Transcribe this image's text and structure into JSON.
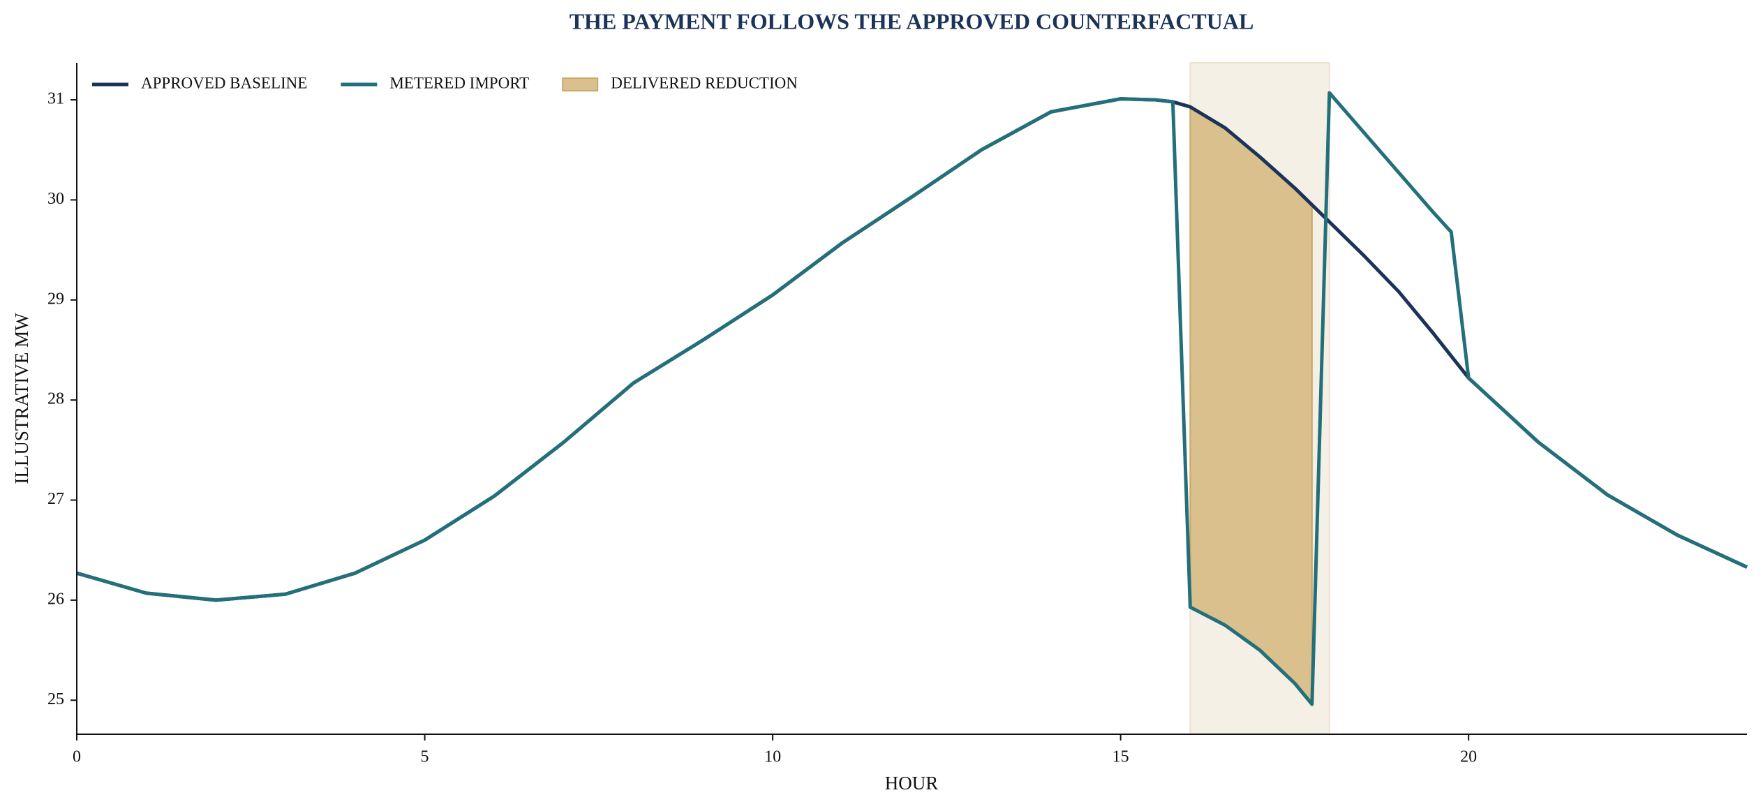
{
  "chart_data": {
    "type": "line",
    "title": "THE PAYMENT FOLLOWS THE APPROVED COUNTERFACTUAL",
    "x_label": "HOUR",
    "y_label": "ILLUSTRATIVE MW",
    "x": [
      0,
      1,
      2,
      3,
      4,
      5,
      6,
      7,
      8,
      9,
      10,
      11,
      12,
      13,
      14,
      15,
      15.5,
      15.75,
      16,
      16.5,
      17,
      17.5,
      17.75,
      18,
      18.5,
      19,
      19.5,
      19.75,
      20,
      21,
      22,
      23,
      24
    ],
    "series": [
      {
        "name": "APPROVED BASELINE",
        "color": "#1b3358",
        "values": [
          26.27,
          26.07,
          26.0,
          26.06,
          26.27,
          26.6,
          27.04,
          27.58,
          28.17,
          28.6,
          29.05,
          29.57,
          30.03,
          30.5,
          30.88,
          31.01,
          31.0,
          30.98,
          30.93,
          30.72,
          30.43,
          30.12,
          29.95,
          29.78,
          29.44,
          29.08,
          28.66,
          28.44,
          28.22,
          27.58,
          27.05,
          26.65,
          26.33
        ]
      },
      {
        "name": "METERED IMPORT",
        "color": "#236f7a",
        "values": [
          26.27,
          26.07,
          26.0,
          26.06,
          26.27,
          26.6,
          27.04,
          27.58,
          28.17,
          28.6,
          29.05,
          29.57,
          30.03,
          30.5,
          30.88,
          31.01,
          31.0,
          30.98,
          25.93,
          25.75,
          25.5,
          25.17,
          24.96,
          31.07,
          30.67,
          30.27,
          29.87,
          29.68,
          28.22,
          27.58,
          27.05,
          26.65,
          26.33
        ]
      }
    ],
    "reduction": {
      "name": "DELIVERED REDUCTION",
      "color": "#d9c08c",
      "window": [
        16,
        17.75
      ]
    },
    "event_window": [
      16,
      18
    ],
    "event_color": "#f5f0e6",
    "xlim": [
      0,
      24
    ],
    "xticks": [
      0,
      5,
      10,
      15,
      20
    ],
    "ylim": [
      24.66,
      31.37
    ],
    "yticks": [
      25,
      26,
      27,
      28,
      29,
      30,
      31
    ],
    "legend": "upper-left"
  }
}
